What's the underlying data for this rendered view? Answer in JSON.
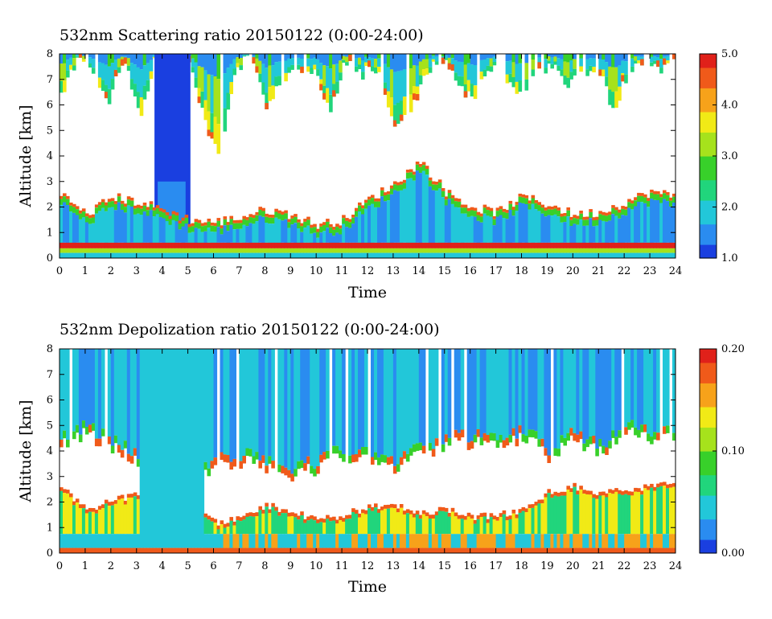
{
  "chart_data": [
    {
      "type": "heatmap",
      "title": "532nm Scattering ratio  20150122 (0:00-24:00)",
      "xlabel": "Time",
      "ylabel": "Altitude [km]",
      "xlim": [
        0,
        24
      ],
      "ylim": [
        0,
        8
      ],
      "x_ticks": [
        "0",
        "1",
        "2",
        "3",
        "4",
        "5",
        "6",
        "7",
        "8",
        "9",
        "10",
        "11",
        "12",
        "13",
        "14",
        "15",
        "16",
        "17",
        "18",
        "19",
        "20",
        "21",
        "22",
        "23",
        "24"
      ],
      "y_ticks": [
        "0",
        "1",
        "2",
        "3",
        "4",
        "5",
        "6",
        "7",
        "8"
      ],
      "colorbar": {
        "min": 1.0,
        "max": 5.0,
        "ticks": [
          "1.0",
          "2.0",
          "3.0",
          "4.0",
          "5.0"
        ]
      },
      "colormap": [
        "#1a3fe0",
        "#2a8cf0",
        "#22c7d9",
        "#21d57c",
        "#38d02a",
        "#a6e21c",
        "#f1ea16",
        "#f7a21a",
        "#f05a1a",
        "#e0211a"
      ],
      "features": {
        "high_cloud_base_km": [
          6.4,
          7.7,
          7.3,
          6.1,
          7.8,
          5.5,
          8.0,
          8.0,
          8.0,
          5.6,
          3.9,
          7.2,
          8.0,
          6.0,
          6.9,
          7.5,
          7.4,
          5.6,
          7.7,
          7.2,
          7.5,
          5.2,
          5.6,
          7.1,
          8.0,
          7.0,
          6.2,
          7.5,
          7.1,
          6.4,
          7.2,
          7.6,
          6.8,
          7.2,
          7.6,
          5.7,
          7.5,
          7.6,
          7.3,
          8.0
        ],
        "tall_column_time_h": [
          3.7,
          5.1
        ],
        "boundary_layer_top_km": [
          2.5,
          1.7,
          2.4,
          2.2,
          1.9,
          1.5,
          1.4,
          1.6,
          1.9,
          1.7,
          1.3,
          1.5,
          2.3,
          2.9,
          3.8,
          2.6,
          2.0,
          1.8,
          2.4,
          2.1,
          1.7,
          1.8,
          2.2,
          2.6,
          2.4
        ]
      }
    },
    {
      "type": "heatmap",
      "title": "532nm Depolization ratio  20150122 (0:00-24:00)",
      "xlabel": "Time",
      "ylabel": "Altitude [km]",
      "xlim": [
        0,
        24
      ],
      "ylim": [
        0,
        8
      ],
      "x_ticks": [
        "0",
        "1",
        "2",
        "3",
        "4",
        "5",
        "6",
        "7",
        "8",
        "9",
        "10",
        "11",
        "12",
        "13",
        "14",
        "15",
        "16",
        "17",
        "18",
        "19",
        "20",
        "21",
        "22",
        "23",
        "24"
      ],
      "y_ticks": [
        "0",
        "1",
        "2",
        "3",
        "4",
        "5",
        "6",
        "7",
        "8"
      ],
      "colorbar": {
        "min": 0.0,
        "max": 0.2,
        "ticks": [
          "0.00",
          "0.10",
          "0.20"
        ]
      },
      "colormap": [
        "#1a3fe0",
        "#2a8cf0",
        "#22c7d9",
        "#21d57c",
        "#38d02a",
        "#a6e21c",
        "#f1ea16",
        "#f7a21a",
        "#f05a1a",
        "#e0211a"
      ],
      "features": {
        "cloud_base_km": [
          4.3,
          4.7,
          4.1,
          3.6,
          2.5,
          2.6,
          3.3,
          3.6,
          3.4,
          3.1,
          3.3,
          3.8,
          3.6,
          3.3,
          3.9,
          4.2,
          4.3,
          4.1,
          4.6,
          3.8,
          4.4,
          3.9,
          4.8,
          4.4,
          4.5
        ],
        "boundary_layer_top_km": [
          2.6,
          1.7,
          2.1,
          2.3,
          2.4,
          2.3,
          1.2,
          1.4,
          1.9,
          1.6,
          1.3,
          1.5,
          1.8,
          1.9,
          1.6,
          1.7,
          1.4,
          1.5,
          1.7,
          2.4,
          2.6,
          2.3,
          2.5,
          2.6,
          2.7
        ]
      }
    }
  ]
}
